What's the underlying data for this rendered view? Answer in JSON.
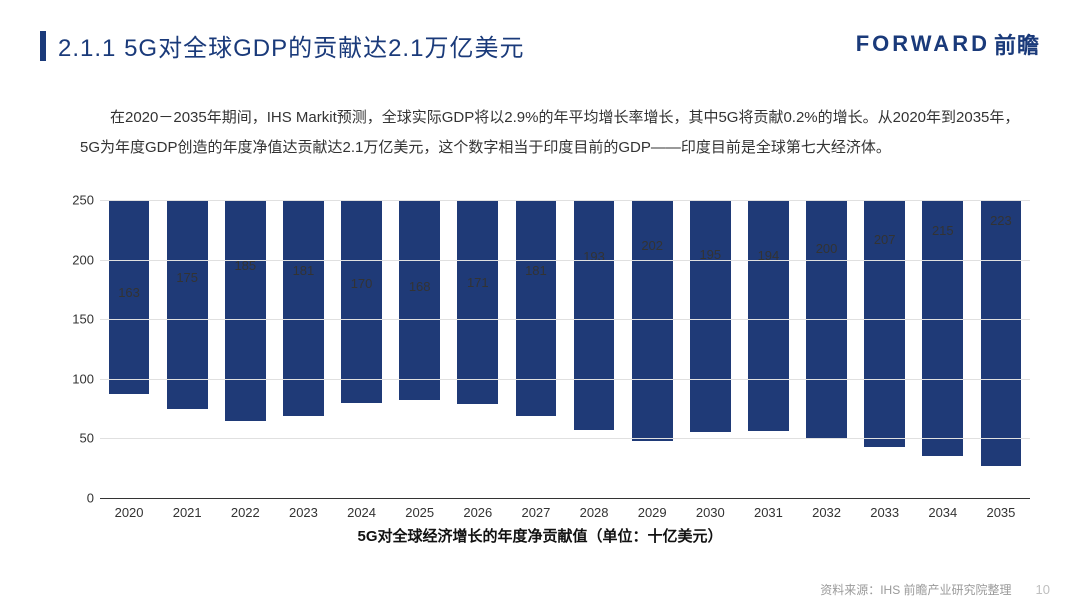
{
  "header": {
    "section_number": "2.1.1",
    "title": "5G对全球GDP的贡献达2.1万亿美元",
    "logo_latin": "FORWARD",
    "logo_cn": "前瞻"
  },
  "body": {
    "paragraph": "在2020－2035年期间，IHS Markit预测，全球实际GDP将以2.9%的年平均增长率增长，其中5G将贡献0.2%的增长。从2020年到2035年，5G为年度GDP创造的年度净值达贡献达2.1万亿美元，这个数字相当于印度目前的GDP——印度目前是全球第七大经济体。"
  },
  "chart": {
    "type": "bar",
    "x_title": "5G对全球经济增长的年度净贡献值（单位：十亿美元）",
    "categories": [
      "2020",
      "2021",
      "2022",
      "2023",
      "2024",
      "2025",
      "2026",
      "2027",
      "2028",
      "2029",
      "2030",
      "2031",
      "2032",
      "2033",
      "2034",
      "2035"
    ],
    "values": [
      163,
      175,
      185,
      181,
      170,
      168,
      171,
      181,
      193,
      202,
      195,
      194,
      200,
      207,
      215,
      223
    ],
    "ylim": [
      0,
      250
    ],
    "ytick_step": 50,
    "bar_color": "#1f3a77",
    "bar_width_pct": 70,
    "axis_color": "#333333",
    "grid_color": "#e0e0e0",
    "text_color": "#333333",
    "label_fontsize": 13,
    "xtitle_fontsize": 15,
    "background_color": "#ffffff"
  },
  "footer": {
    "source": "资料来源：IHS 前瞻产业研究院整理",
    "page": "10"
  }
}
